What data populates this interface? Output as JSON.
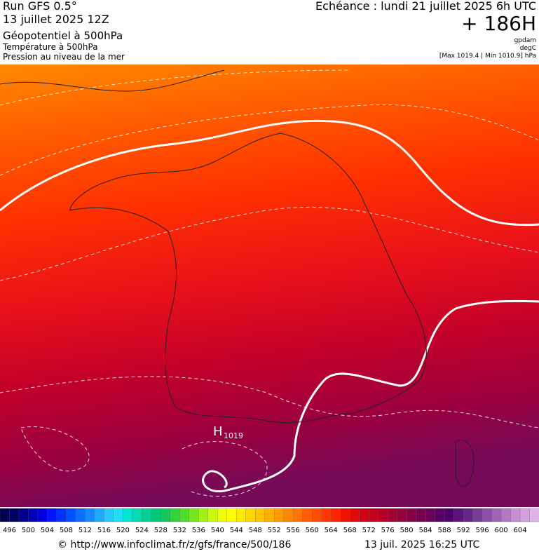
{
  "header": {
    "run": "Run GFS 0.5°",
    "run_date": "13 juillet 2025 12Z",
    "field_1": "Géopotentiel à 500hPa",
    "field_2": "Température à 500hPa",
    "field_3": "Pression au niveau de la mer",
    "valid": "Echéance : lundi 21 juillet 2025 6h UTC",
    "lead": "+ 186H",
    "unit_1": "gpdam",
    "unit_2": "degC",
    "pressure_range": "[Max 1019.4 | Min 1010.9] hPa"
  },
  "map": {
    "high_letter": "H",
    "high_value": "1019"
  },
  "colorbar": {
    "labels": [
      496,
      500,
      504,
      508,
      512,
      516,
      520,
      524,
      528,
      532,
      536,
      540,
      544,
      548,
      552,
      556,
      560,
      564,
      568,
      572,
      576,
      580,
      584,
      588,
      592,
      596,
      600,
      604
    ],
    "colors": [
      "#00004b",
      "#000064",
      "#00008c",
      "#0000b4",
      "#0000dc",
      "#0014ff",
      "#0032ff",
      "#0050ff",
      "#0a6eff",
      "#148cff",
      "#1eaaff",
      "#28c8ff",
      "#1ee1f0",
      "#00e6d2",
      "#00dcb4",
      "#00d296",
      "#00c878",
      "#14c85a",
      "#32d23c",
      "#50dc28",
      "#78e61e",
      "#a0f014",
      "#c8fa0a",
      "#f0ff00",
      "#ffff00",
      "#ffeb00",
      "#ffd700",
      "#ffc300",
      "#ffaf00",
      "#ff9b00",
      "#ff8700",
      "#ff7300",
      "#ff5f00",
      "#ff4b00",
      "#ff3700",
      "#ff2300",
      "#f01400",
      "#e10a0a",
      "#d20014",
      "#c3001e",
      "#b40028",
      "#a50032",
      "#96003c",
      "#870046",
      "#780050",
      "#69005a",
      "#5a0064",
      "#50006e",
      "#5a1478",
      "#642882",
      "#783c96",
      "#8c50aa",
      "#a064b4",
      "#b478c3",
      "#c88cd2",
      "#d2a0dc",
      "#dcb4e6"
    ]
  },
  "footer": {
    "url": "© http://www.infoclimat.fr/z/gfs/france/500/186",
    "generated": "13 juil. 2025 16:25 UTC"
  }
}
